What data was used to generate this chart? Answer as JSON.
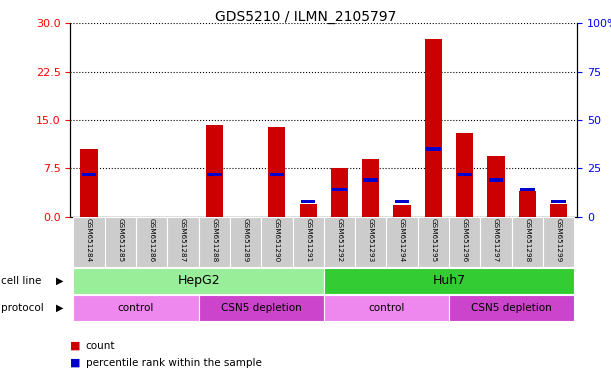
{
  "title": "GDS5210 / ILMN_2105797",
  "samples": [
    "GSM651284",
    "GSM651285",
    "GSM651286",
    "GSM651287",
    "GSM651288",
    "GSM651289",
    "GSM651290",
    "GSM651291",
    "GSM651292",
    "GSM651293",
    "GSM651294",
    "GSM651295",
    "GSM651296",
    "GSM651297",
    "GSM651298",
    "GSM651299"
  ],
  "count_values": [
    10.5,
    0.0,
    0.0,
    0.0,
    14.2,
    0.0,
    13.9,
    2.0,
    7.5,
    9.0,
    1.8,
    27.5,
    13.0,
    9.5,
    4.0,
    2.0
  ],
  "percentile_values": [
    22,
    0,
    0,
    0,
    22,
    0,
    22,
    8,
    14,
    19,
    8,
    35,
    22,
    19,
    14,
    8
  ],
  "left_ylim": [
    0,
    30
  ],
  "right_ylim": [
    0,
    100
  ],
  "left_yticks": [
    0,
    7.5,
    15,
    22.5,
    30
  ],
  "right_yticks": [
    0,
    25,
    50,
    75,
    100
  ],
  "right_yticklabels": [
    "0",
    "25",
    "50",
    "75",
    "100%"
  ],
  "bar_color_red": "#cc0000",
  "bar_color_blue": "#0000cc",
  "cell_line_hepg2_label": "HepG2",
  "cell_line_huh7_label": "Huh7",
  "cell_line_hepg2_color": "#99ee99",
  "cell_line_huh7_color": "#33cc33",
  "protocol_light_color": "#ee88ee",
  "protocol_dark_color": "#cc44cc",
  "protocol_labels": [
    "control",
    "CSN5 depletion",
    "control",
    "CSN5 depletion"
  ],
  "legend_count_label": "count",
  "legend_percentile_label": "percentile rank within the sample",
  "cell_line_row_label": "cell line",
  "protocol_row_label": "protocol"
}
